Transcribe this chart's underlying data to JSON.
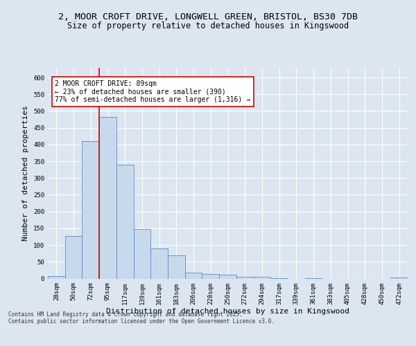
{
  "title_line1": "2, MOOR CROFT DRIVE, LONGWELL GREEN, BRISTOL, BS30 7DB",
  "title_line2": "Size of property relative to detached houses in Kingswood",
  "xlabel": "Distribution of detached houses by size in Kingswood",
  "ylabel": "Number of detached properties",
  "categories": [
    "28sqm",
    "50sqm",
    "72sqm",
    "95sqm",
    "117sqm",
    "139sqm",
    "161sqm",
    "183sqm",
    "206sqm",
    "228sqm",
    "250sqm",
    "272sqm",
    "294sqm",
    "317sqm",
    "339sqm",
    "361sqm",
    "383sqm",
    "405sqm",
    "428sqm",
    "450sqm",
    "472sqm"
  ],
  "values": [
    7,
    127,
    410,
    483,
    340,
    148,
    90,
    70,
    17,
    13,
    12,
    6,
    5,
    2,
    0,
    1,
    0,
    0,
    0,
    0,
    3
  ],
  "bar_color": "#c9d9ec",
  "bar_edge_color": "#5b8ac5",
  "vline_x_index": 3,
  "vline_color": "#cc0000",
  "annotation_text": "2 MOOR CROFT DRIVE: 89sqm\n← 23% of detached houses are smaller (390)\n77% of semi-detached houses are larger (1,316) →",
  "annotation_box_color": "#ffffff",
  "annotation_box_edge": "#cc0000",
  "ylim": [
    0,
    630
  ],
  "yticks": [
    0,
    50,
    100,
    150,
    200,
    250,
    300,
    350,
    400,
    450,
    500,
    550,
    600
  ],
  "background_color": "#dce6f1",
  "plot_bg_color": "#dce6f1",
  "footer_text": "Contains HM Land Registry data © Crown copyright and database right 2025.\nContains public sector information licensed under the Open Government Licence v3.0.",
  "title_fontsize": 9.5,
  "subtitle_fontsize": 8.5,
  "tick_fontsize": 6.5,
  "label_fontsize": 8,
  "annotation_fontsize": 7,
  "footer_fontsize": 5.5
}
